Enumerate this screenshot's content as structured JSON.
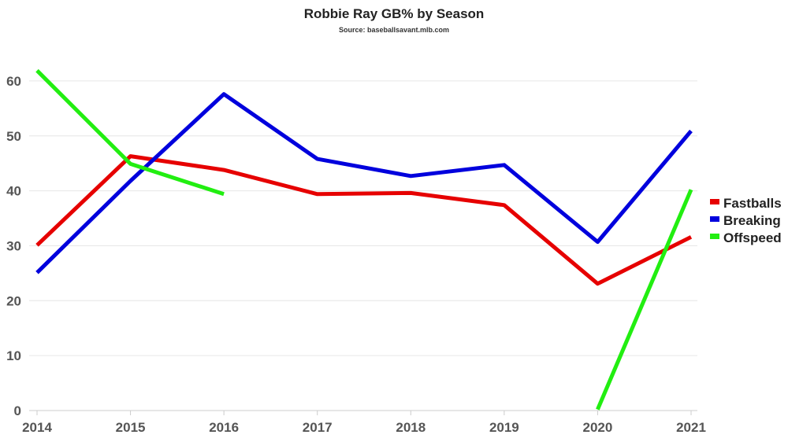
{
  "chart_data": {
    "type": "line",
    "title": "Robbie Ray GB% by Season",
    "subtitle": "Source: baseballsavant.mlb.com",
    "xlabel": "",
    "ylabel": "",
    "categories": [
      "2014",
      "2015",
      "2016",
      "2017",
      "2018",
      "2019",
      "2020",
      "2021"
    ],
    "ylim": [
      0,
      65
    ],
    "yticks": [
      0,
      10,
      20,
      30,
      40,
      50,
      60
    ],
    "grid": "horizontal",
    "legend_position": "right",
    "series": [
      {
        "name": "Fastballs",
        "color": "#e60000",
        "values": [
          30.1,
          46.3,
          43.8,
          39.4,
          39.6,
          37.4,
          23.1,
          31.6
        ]
      },
      {
        "name": "Breaking",
        "color": "#0000dd",
        "values": [
          25.1,
          41.8,
          57.6,
          45.8,
          42.7,
          44.7,
          30.7,
          50.9
        ]
      },
      {
        "name": "Offspeed",
        "color": "#22ee11",
        "values": [
          61.9,
          44.9,
          39.4,
          null,
          null,
          null,
          0.2,
          40.2
        ]
      }
    ]
  }
}
